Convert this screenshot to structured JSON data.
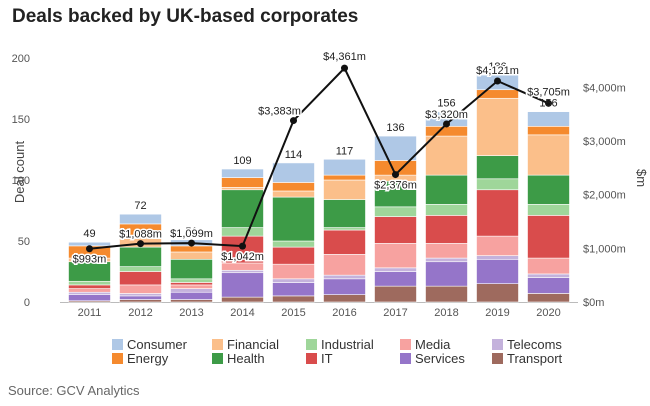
{
  "title": "Deals backed by UK-based corporates",
  "source": "Source: GCV Analytics",
  "chart_data": {
    "type": "bar",
    "stacked": true,
    "categories": [
      "2011",
      "2012",
      "2013",
      "2014",
      "2015",
      "2016",
      "2017",
      "2018",
      "2019",
      "2020"
    ],
    "ylabel": "Deal count",
    "y2label": "$m",
    "ylim": [
      0,
      200
    ],
    "yticks": [
      "0",
      "50",
      "100",
      "150",
      "200"
    ],
    "y2lim": [
      0,
      4550
    ],
    "y2ticks": [
      "$0m",
      "$1,000m",
      "$2,000m",
      "$3,000m",
      "$4,000m"
    ],
    "series": [
      {
        "name": "Transport",
        "color": "#9e6a5e",
        "values": [
          1,
          2,
          2,
          4,
          5,
          6,
          13,
          13,
          15,
          7
        ]
      },
      {
        "name": "Services",
        "color": "#9575c9",
        "values": [
          5,
          3,
          6,
          20,
          11,
          13,
          12,
          20,
          20,
          13
        ]
      },
      {
        "name": "Telecoms",
        "color": "#c4b2dc",
        "values": [
          2,
          2,
          3,
          2,
          3,
          3,
          3,
          3,
          3,
          3
        ]
      },
      {
        "name": "Media",
        "color": "#f7a2a0",
        "values": [
          3,
          7,
          3,
          6,
          12,
          17,
          20,
          12,
          16,
          13
        ]
      },
      {
        "name": "IT",
        "color": "#d94c4c",
        "values": [
          3,
          11,
          2,
          22,
          14,
          20,
          22,
          23,
          38,
          35
        ]
      },
      {
        "name": "Industrial",
        "color": "#9fd69a",
        "values": [
          3,
          4,
          3,
          7,
          5,
          2,
          8,
          9,
          9,
          9
        ]
      },
      {
        "name": "Health",
        "color": "#3d9b47",
        "values": [
          16,
          16,
          16,
          31,
          36,
          23,
          21,
          24,
          19,
          24
        ]
      },
      {
        "name": "Financial",
        "color": "#fbbf8a",
        "values": [
          3,
          7,
          6,
          2,
          5,
          16,
          5,
          32,
          47,
          33
        ]
      },
      {
        "name": "Energy",
        "color": "#f58a2e",
        "values": [
          10,
          12,
          5,
          8,
          7,
          4,
          12,
          8,
          7,
          7
        ]
      },
      {
        "name": "Consumer",
        "color": "#afc8e6",
        "values": [
          3,
          8,
          5,
          7,
          16,
          13,
          20,
          12,
          12,
          12
        ]
      }
    ],
    "totals": [
      "49",
      "72",
      "51",
      "109",
      "114",
      "117",
      "136",
      "156",
      "186",
      "156"
    ],
    "line": {
      "values": [
        993,
        1088,
        1099,
        1042,
        3383,
        4361,
        2376,
        3320,
        4121,
        3705
      ],
      "labels": [
        "$993m",
        "$1,088m",
        "$1,099m",
        "$1,042m",
        "$3,383m",
        "$4,361m",
        "$2,376m",
        "$3,320m",
        "$4,121m",
        "$3,705m"
      ]
    },
    "legend": {
      "position": "bottom",
      "rows": [
        [
          "Consumer",
          "Financial",
          "Industrial",
          "Media",
          "Telecoms"
        ],
        [
          "Energy",
          "Health",
          "IT",
          "Services",
          "Transport"
        ]
      ]
    }
  }
}
